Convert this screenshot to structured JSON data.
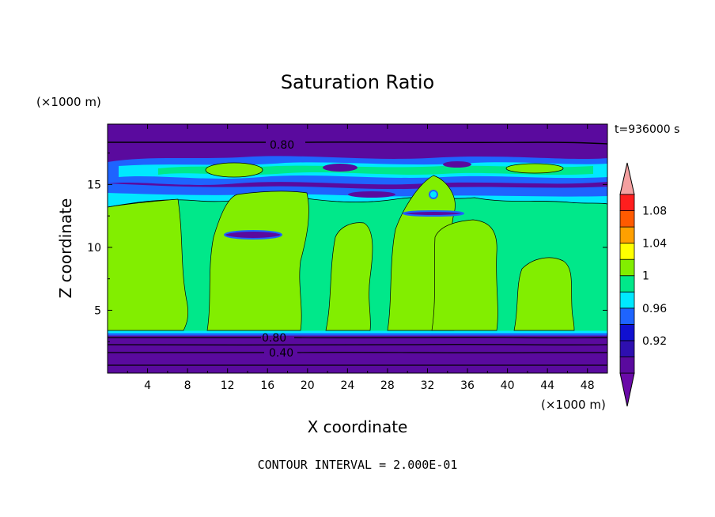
{
  "chart_data": {
    "type": "heatmap",
    "title": "Saturation Ratio",
    "xlabel": "X coordinate",
    "ylabel": "Z coordinate",
    "x_unit": "(×1000 m)",
    "y_unit": "(×1000 m)",
    "time_label": "t=936000 s",
    "footer": "CONTOUR INTERVAL = 2.000E-01",
    "xlim": [
      0,
      50
    ],
    "ylim": [
      0,
      19.8
    ],
    "x_ticks": [
      "4",
      "8",
      "12",
      "16",
      "20",
      "24",
      "28",
      "32",
      "36",
      "40",
      "44",
      "48"
    ],
    "y_ticks": [
      "5",
      "10",
      "15"
    ],
    "colorbar": {
      "levels": [
        {
          "label": "",
          "color": "#5a0a9e"
        },
        {
          "label": "0.92",
          "color": "#2e0fb0"
        },
        {
          "label": "",
          "color": "#1010d0"
        },
        {
          "label": "0.96",
          "color": "#1e64ff"
        },
        {
          "label": "",
          "color": "#00e8ff"
        },
        {
          "label": "1",
          "color": "#00e88a"
        },
        {
          "label": "",
          "color": "#82ee00"
        },
        {
          "label": "1.04",
          "color": "#ffff00"
        },
        {
          "label": "",
          "color": "#ffa000"
        },
        {
          "label": "1.08",
          "color": "#ff5a00"
        },
        {
          "label": "",
          "color": "#ff1e1e"
        }
      ],
      "top_arrow_color": "#f4a0a0",
      "bottom_arrow_color": "#6a0aa8"
    },
    "contour_labels": [
      "0.80",
      "0.80",
      "0.40"
    ],
    "layers": [
      {
        "z": [
          18.2,
          19.8
        ],
        "value": 0.8,
        "color": "#5a0a9e"
      },
      {
        "z": [
          17.0,
          18.2
        ],
        "value": 0.9,
        "color": "#5a0a9e"
      },
      {
        "z": [
          15.4,
          17.0
        ],
        "value": 0.96,
        "color": "#1e64ff"
      },
      {
        "z": [
          13.2,
          15.4
        ],
        "value": 0.95,
        "color": "#5a0a9e"
      },
      {
        "z": [
          3.4,
          13.2
        ],
        "value": 1.0,
        "color": "#00e88a"
      },
      {
        "z": [
          0,
          3.4
        ],
        "value": 0.6,
        "color": "#5a0a9e"
      }
    ]
  }
}
